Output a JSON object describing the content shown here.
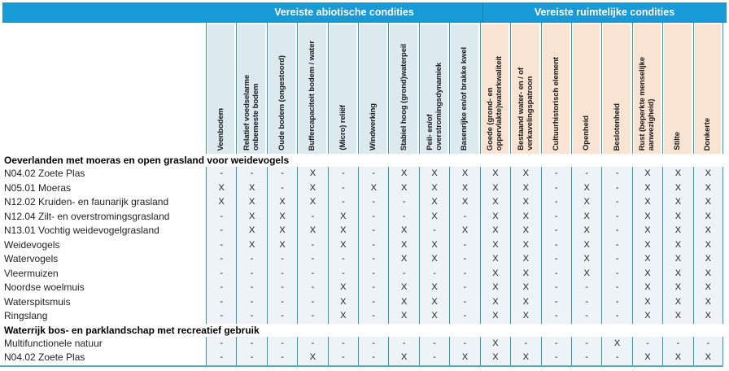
{
  "banner": {
    "abiotic_title": "Vereiste abiotische condities",
    "spatial_title": "Vereiste ruimtelijke condities"
  },
  "colors": {
    "banner_blue": "#189AD6",
    "line_teal": "#2E9BAE",
    "abiotic_header_bg": "#DCE9EF",
    "spatial_header_bg": "#F9E3D3",
    "cell_bg": "#EDF3F7"
  },
  "table": {
    "value_marks": {
      "present": "X",
      "absent": "-"
    },
    "columns": [
      {
        "label": "Veenbodem",
        "group": "abiotic"
      },
      {
        "label": "Relatief voedselarme\nonbemeste bodem",
        "group": "abiotic"
      },
      {
        "label": "Oude bodem (ongestoord)",
        "group": "abiotic"
      },
      {
        "label": "Buffercapaciteit bodem / water",
        "group": "abiotic"
      },
      {
        "label": "(Micro) reliëf",
        "group": "abiotic"
      },
      {
        "label": "Windwerking",
        "group": "abiotic"
      },
      {
        "label": "Stabiel hoog (grond)waterpeil",
        "group": "abiotic"
      },
      {
        "label": "Peil- en/of\noverstromingsdynamiek",
        "group": "abiotic"
      },
      {
        "label": "Basenrijke en/of brakke kwel",
        "group": "abiotic"
      },
      {
        "label": "Goede (grond- en\noppervlakte)waterkwaliteit",
        "group": "spatial"
      },
      {
        "label": "Bestaand water- en / of\nverkavelingspatroon",
        "group": "spatial"
      },
      {
        "label": "Cultuurhistorisch element",
        "group": "spatial"
      },
      {
        "label": "Openheid",
        "group": "spatial"
      },
      {
        "label": "Beslotenheid",
        "group": "spatial"
      },
      {
        "label": "Rust (beperkte menselijke\naanwezigheid)",
        "group": "spatial"
      },
      {
        "label": "Stilte",
        "group": "spatial"
      },
      {
        "label": "Donkerte",
        "group": "spatial"
      }
    ],
    "sections": [
      {
        "header": "Oeverlanden met moeras en open grasland voor weidevogels",
        "rows": [
          {
            "label": "N04.02 Zoete Plas",
            "values": [
              "-",
              "-",
              "-",
              "X",
              "-",
              "-",
              "X",
              "X",
              "X",
              "X",
              "X",
              "-",
              "-",
              "-",
              "X",
              "X",
              "X"
            ]
          },
          {
            "label": "N05.01 Moeras",
            "values": [
              "X",
              "X",
              "-",
              "X",
              "-",
              "X",
              "X",
              "X",
              "X",
              "X",
              "X",
              "-",
              "X",
              "-",
              "X",
              "X",
              "X"
            ]
          },
          {
            "label": "N12.02 Kruiden- en faunarijk grasland",
            "values": [
              "X",
              "X",
              "X",
              "X",
              "-",
              "-",
              "-",
              "X",
              "X",
              "X",
              "X",
              "-",
              "X",
              "-",
              "X",
              "X",
              "X"
            ]
          },
          {
            "label": "N12.04 Zilt- en overstromingsgrasland",
            "values": [
              "-",
              "X",
              "X",
              "-",
              "X",
              "-",
              "-",
              "X",
              "-",
              "X",
              "X",
              "-",
              "X",
              "-",
              "X",
              "X",
              "X"
            ]
          },
          {
            "label": "N13.01 Vochtig weidevogelgrasland",
            "values": [
              "-",
              "X",
              "X",
              "X",
              "X",
              "-",
              "X",
              "-",
              "X",
              "X",
              "X",
              "-",
              "X",
              "-",
              "X",
              "X",
              "X"
            ]
          },
          {
            "label": "Weidevogels",
            "values": [
              "-",
              "X",
              "X",
              "-",
              "X",
              "-",
              "X",
              "X",
              "-",
              "X",
              "X",
              "-",
              "X",
              "-",
              "X",
              "X",
              "X"
            ]
          },
          {
            "label": "Watervogels",
            "values": [
              "-",
              "-",
              "-",
              "-",
              "-",
              "-",
              "X",
              "X",
              "-",
              "X",
              "X",
              "-",
              "X",
              "-",
              "X",
              "X",
              "X"
            ]
          },
          {
            "label": "Vleermuizen",
            "values": [
              "-",
              "-",
              "-",
              "-",
              "-",
              "-",
              "-",
              "-",
              "-",
              "X",
              "X",
              "-",
              "X",
              "-",
              "X",
              "X",
              "X"
            ]
          },
          {
            "label": "Noordse woelmuis",
            "values": [
              "-",
              "-",
              "-",
              "-",
              "X",
              "-",
              "X",
              "X",
              "-",
              "X",
              "X",
              "-",
              "-",
              "-",
              "X",
              "X",
              "X"
            ]
          },
          {
            "label": "Waterspitsmuis",
            "values": [
              "-",
              "-",
              "-",
              "-",
              "X",
              "-",
              "X",
              "X",
              "-",
              "X",
              "X",
              "-",
              "-",
              "-",
              "X",
              "X",
              "X"
            ]
          },
          {
            "label": "Ringslang",
            "values": [
              "-",
              "-",
              "-",
              "-",
              "X",
              "-",
              "X",
              "X",
              "-",
              "X",
              "X",
              "-",
              "-",
              "-",
              "X",
              "X",
              "X"
            ]
          }
        ]
      },
      {
        "header": "Waterrijk bos- en parklandschap met recreatief gebruik",
        "rows": [
          {
            "label": "Multifunctionele natuur",
            "values": [
              "-",
              "-",
              "-",
              "-",
              "-",
              "-",
              "-",
              "-",
              "-",
              "X",
              "-",
              "-",
              "-",
              "X",
              "-",
              "-",
              "-"
            ]
          },
          {
            "label": "N04.02 Zoete Plas",
            "values": [
              "-",
              "-",
              "-",
              "X",
              "-",
              "-",
              "X",
              "-",
              "X",
              "X",
              "X",
              "-",
              "-",
              "-",
              "X",
              "X",
              "X"
            ]
          }
        ]
      }
    ]
  }
}
